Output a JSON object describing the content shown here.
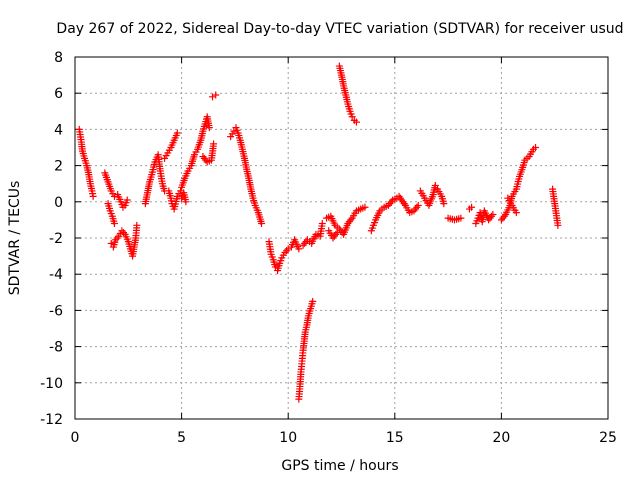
{
  "chart_data": {
    "type": "scatter",
    "title": "Day 267 of 2022, Sidereal Day-to-day VTEC variation (SDTVAR) for receiver usud",
    "xlabel": "GPS time / hours",
    "ylabel": "SDTVAR / TECUs",
    "xlim": [
      0,
      25
    ],
    "ylim": [
      -12,
      8
    ],
    "x_ticks": [
      0,
      5,
      10,
      15,
      20,
      25
    ],
    "x_tick_labels": [
      "0",
      "5",
      "10",
      "15",
      "20",
      "25"
    ],
    "y_ticks": [
      -12,
      -10,
      -8,
      -6,
      -4,
      -2,
      0,
      2,
      4,
      6,
      8
    ],
    "y_tick_labels": [
      "-12",
      "-10",
      "-8",
      "-6",
      "-4",
      "-2",
      "0",
      "2",
      "4",
      "6",
      "8"
    ],
    "grid": true,
    "marker": "+",
    "marker_color": "#ff0000",
    "series": [
      {
        "name": "SDTVAR",
        "segments": [
          [
            [
              0.2,
              4.0
            ],
            [
              0.3,
              3.3
            ],
            [
              0.35,
              2.8
            ],
            [
              0.45,
              2.4
            ],
            [
              0.55,
              2.0
            ],
            [
              0.65,
              1.5
            ],
            [
              0.72,
              1.0
            ],
            [
              0.8,
              0.6
            ],
            [
              0.85,
              0.3
            ]
          ],
          [
            [
              1.4,
              1.6
            ],
            [
              1.55,
              1.1
            ],
            [
              1.7,
              0.6
            ],
            [
              1.85,
              0.3
            ],
            [
              2.0,
              0.4
            ],
            [
              2.15,
              0.0
            ],
            [
              2.25,
              -0.3
            ],
            [
              2.35,
              -0.2
            ],
            [
              2.45,
              0.1
            ]
          ],
          [
            [
              1.55,
              -0.1
            ],
            [
              1.65,
              -0.5
            ],
            [
              1.75,
              -0.8
            ],
            [
              1.85,
              -1.2
            ]
          ],
          [
            [
              1.7,
              -2.3
            ],
            [
              1.8,
              -2.5
            ],
            [
              1.9,
              -2.1
            ],
            [
              2.05,
              -1.9
            ],
            [
              2.2,
              -1.6
            ],
            [
              2.35,
              -1.8
            ],
            [
              2.5,
              -2.2
            ],
            [
              2.6,
              -2.6
            ],
            [
              2.7,
              -3.0
            ],
            [
              2.85,
              -2.0
            ],
            [
              2.9,
              -1.3
            ]
          ],
          [
            [
              3.3,
              -0.1
            ],
            [
              3.4,
              0.5
            ],
            [
              3.5,
              1.1
            ],
            [
              3.6,
              1.5
            ],
            [
              3.75,
              2.2
            ],
            [
              3.9,
              2.6
            ],
            [
              4.0,
              1.7
            ],
            [
              4.1,
              1.0
            ],
            [
              4.2,
              0.6
            ]
          ],
          [
            [
              4.2,
              2.4
            ],
            [
              4.35,
              2.7
            ],
            [
              4.5,
              3.0
            ],
            [
              4.65,
              3.4
            ],
            [
              4.8,
              3.8
            ]
          ],
          [
            [
              4.4,
              0.6
            ],
            [
              4.5,
              0.2
            ],
            [
              4.55,
              -0.1
            ],
            [
              4.65,
              -0.4
            ],
            [
              4.8,
              0.3
            ],
            [
              4.95,
              0.6
            ]
          ],
          [
            [
              5.0,
              0.8
            ],
            [
              5.15,
              1.3
            ],
            [
              5.3,
              1.7
            ],
            [
              5.45,
              2.0
            ],
            [
              5.6,
              2.6
            ],
            [
              5.75,
              2.9
            ],
            [
              5.9,
              3.4
            ],
            [
              6.0,
              3.9
            ],
            [
              6.1,
              4.3
            ],
            [
              6.2,
              4.7
            ],
            [
              6.3,
              4.1
            ]
          ],
          [
            [
              5.0,
              0.2
            ],
            [
              5.1,
              0.5
            ],
            [
              5.2,
              0.0
            ]
          ],
          [
            [
              6.0,
              2.5
            ],
            [
              6.2,
              2.2
            ],
            [
              6.4,
              2.3
            ],
            [
              6.5,
              3.2
            ]
          ],
          [
            [
              6.45,
              5.8
            ],
            [
              6.6,
              5.9
            ]
          ],
          [
            [
              7.3,
              3.6
            ],
            [
              7.45,
              3.9
            ],
            [
              7.55,
              4.1
            ],
            [
              7.65,
              3.8
            ],
            [
              7.75,
              3.4
            ],
            [
              7.85,
              2.9
            ],
            [
              7.95,
              2.4
            ],
            [
              8.05,
              1.8
            ],
            [
              8.15,
              1.3
            ],
            [
              8.25,
              0.7
            ],
            [
              8.35,
              0.2
            ],
            [
              8.45,
              -0.2
            ],
            [
              8.6,
              -0.6
            ],
            [
              8.75,
              -1.2
            ]
          ],
          [
            [
              9.1,
              -2.2
            ],
            [
              9.2,
              -2.9
            ],
            [
              9.3,
              -3.2
            ],
            [
              9.4,
              -3.6
            ],
            [
              9.5,
              -3.8
            ],
            [
              9.6,
              -3.4
            ],
            [
              9.7,
              -3.1
            ],
            [
              9.85,
              -2.8
            ],
            [
              10.0,
              -2.6
            ],
            [
              10.15,
              -2.5
            ],
            [
              10.3,
              -2.1
            ],
            [
              10.5,
              -2.6
            ]
          ],
          [
            [
              10.5,
              -10.9
            ],
            [
              10.55,
              -10.2
            ],
            [
              10.6,
              -9.4
            ],
            [
              10.65,
              -8.8
            ],
            [
              10.7,
              -8.2
            ],
            [
              10.75,
              -7.7
            ],
            [
              10.8,
              -7.2
            ],
            [
              10.88,
              -6.8
            ],
            [
              10.95,
              -6.3
            ],
            [
              11.05,
              -5.9
            ],
            [
              11.15,
              -5.5
            ]
          ],
          [
            [
              10.7,
              -2.4
            ],
            [
              10.9,
              -2.1
            ],
            [
              11.1,
              -2.3
            ],
            [
              11.3,
              -1.8
            ],
            [
              11.5,
              -1.9
            ],
            [
              11.6,
              -1.2
            ]
          ],
          [
            [
              11.8,
              -0.9
            ],
            [
              12.0,
              -0.8
            ],
            [
              12.2,
              -1.3
            ],
            [
              12.4,
              -1.5
            ],
            [
              12.6,
              -1.8
            ],
            [
              12.8,
              -1.2
            ],
            [
              13.0,
              -0.9
            ],
            [
              13.2,
              -0.5
            ],
            [
              13.4,
              -0.4
            ],
            [
              13.6,
              -0.3
            ]
          ],
          [
            [
              11.9,
              -1.6
            ],
            [
              12.1,
              -2.0
            ],
            [
              12.3,
              -1.7
            ]
          ],
          [
            [
              12.4,
              7.5
            ],
            [
              12.5,
              7.0
            ],
            [
              12.6,
              6.4
            ],
            [
              12.7,
              5.9
            ],
            [
              12.8,
              5.4
            ],
            [
              12.9,
              5.0
            ],
            [
              13.0,
              4.7
            ],
            [
              13.1,
              4.5
            ],
            [
              13.2,
              4.4
            ]
          ],
          [
            [
              13.9,
              -1.6
            ],
            [
              14.0,
              -1.3
            ],
            [
              14.1,
              -1.0
            ],
            [
              14.3,
              -0.5
            ],
            [
              14.5,
              -0.3
            ],
            [
              14.7,
              -0.2
            ],
            [
              14.9,
              0.1
            ],
            [
              15.1,
              0.2
            ]
          ],
          [
            [
              15.2,
              0.3
            ],
            [
              15.5,
              -0.2
            ],
            [
              15.7,
              -0.6
            ],
            [
              15.9,
              -0.5
            ],
            [
              16.1,
              -0.2
            ]
          ],
          [
            [
              16.2,
              0.6
            ],
            [
              16.4,
              0.2
            ],
            [
              16.6,
              -0.2
            ],
            [
              16.8,
              0.4
            ],
            [
              16.9,
              0.9
            ],
            [
              17.0,
              0.7
            ],
            [
              17.2,
              0.3
            ],
            [
              17.3,
              -0.1
            ]
          ],
          [
            [
              17.5,
              -0.9
            ],
            [
              17.8,
              -1.0
            ],
            [
              18.1,
              -0.9
            ]
          ],
          [
            [
              18.5,
              -0.4
            ],
            [
              18.6,
              -0.3
            ]
          ],
          [
            [
              18.8,
              -1.2
            ],
            [
              18.9,
              -0.9
            ],
            [
              19.0,
              -0.6
            ],
            [
              19.1,
              -1.1
            ],
            [
              19.2,
              -0.5
            ],
            [
              19.4,
              -1.0
            ],
            [
              19.6,
              -0.7
            ]
          ],
          [
            [
              20.0,
              -1.0
            ],
            [
              20.2,
              -0.7
            ],
            [
              20.4,
              -0.2
            ],
            [
              20.5,
              0.3
            ],
            [
              20.7,
              0.7
            ],
            [
              20.85,
              1.4
            ],
            [
              21.0,
              1.9
            ],
            [
              21.1,
              2.3
            ],
            [
              21.3,
              2.5
            ],
            [
              21.5,
              2.9
            ],
            [
              21.6,
              3.0
            ]
          ],
          [
            [
              20.3,
              0.2
            ],
            [
              20.5,
              -0.2
            ],
            [
              20.7,
              -0.6
            ]
          ],
          [
            [
              22.4,
              0.7
            ],
            [
              22.45,
              0.3
            ],
            [
              22.5,
              -0.1
            ],
            [
              22.55,
              -0.5
            ],
            [
              22.6,
              -0.9
            ],
            [
              22.65,
              -1.3
            ]
          ]
        ]
      }
    ]
  }
}
